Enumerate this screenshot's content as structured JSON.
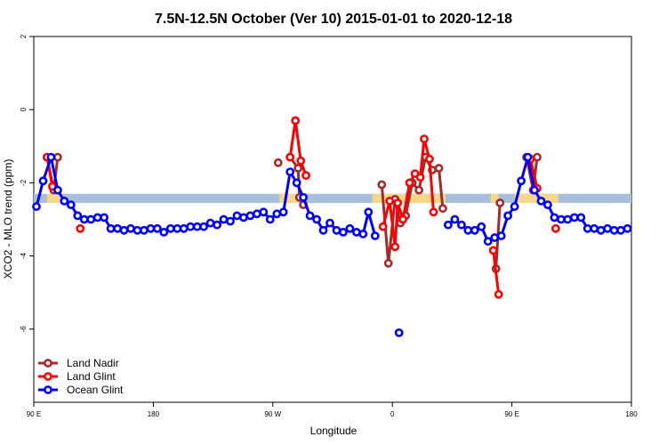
{
  "chart_data": {
    "type": "line",
    "title": "7.5N-12.5N October (Ver 10)   2015-01-01 to 2020-12-18",
    "xlabel": "Longitude",
    "ylabel": "XCO2 - MLO trend (ppm)",
    "x_ticks": [
      {
        "value": 0,
        "label": "90 E"
      },
      {
        "value": 90,
        "label": "180"
      },
      {
        "value": 180,
        "label": "90 W"
      },
      {
        "value": 270,
        "label": "0"
      },
      {
        "value": 360,
        "label": "90 E"
      },
      {
        "value": 450,
        "label": "180"
      }
    ],
    "y_ticks": [
      {
        "value": 2,
        "label": "2"
      },
      {
        "value": 0,
        "label": "0"
      },
      {
        "value": -2,
        "label": "-2"
      },
      {
        "value": -4,
        "label": "-4"
      },
      {
        "value": -6,
        "label": "-6"
      }
    ],
    "xlim": [
      0,
      450
    ],
    "ylim": [
      -8,
      2
    ],
    "band": {
      "y_low": -2.55,
      "y_high": -2.3,
      "color": "#a8bfdc",
      "highlight_color": "#f5d78a"
    },
    "band_highlights": [
      [
        10,
        22
      ],
      [
        185,
        200
      ],
      [
        255,
        310
      ],
      [
        344,
        350
      ],
      [
        362,
        395
      ]
    ],
    "legend": {
      "position": "bottom-left"
    },
    "series": [
      {
        "name": "Land Nadir",
        "color": "#a52a2a",
        "segments": [
          [
            [
              10,
              -1.3
            ],
            [
              15,
              -2.2
            ],
            [
              18,
              -1.3
            ]
          ],
          [
            [
              184,
              -1.45
            ]
          ],
          [
            [
              193,
              -1.3
            ],
            [
              199,
              -1.6
            ],
            [
              200,
              -2.4
            ],
            [
              203,
              -2.6
            ]
          ],
          [
            [
              262,
              -2.05
            ],
            [
              267,
              -4.2
            ],
            [
              272,
              -2.45
            ],
            [
              276,
              -3.1
            ],
            [
              280,
              -2.9
            ],
            [
              285,
              -2.0
            ],
            [
              290,
              -2.2
            ],
            [
              295,
              -1.3
            ],
            [
              300,
              -1.65
            ],
            [
              305,
              -1.6
            ],
            [
              308,
              -2.7
            ]
          ],
          [
            [
              348,
              -4.35
            ],
            [
              351,
              -2.55
            ]
          ],
          [
            [
              371,
              -1.3
            ],
            [
              376,
              -2.2
            ],
            [
              379,
              -1.3
            ]
          ]
        ]
      },
      {
        "name": "Land Glint",
        "color": "#ff0000",
        "segments": [
          [
            [
              10,
              -1.3
            ],
            [
              14,
              -2.1
            ]
          ],
          [
            [
              35,
              -3.25
            ]
          ],
          [
            [
              193,
              -1.3
            ],
            [
              197,
              -0.3
            ],
            [
              201,
              -1.4
            ],
            [
              205,
              -1.8
            ]
          ],
          [
            [
              263,
              -3.2
            ],
            [
              268,
              -2.5
            ],
            [
              272,
              -3.75
            ],
            [
              274,
              -2.55
            ],
            [
              278,
              -3.0
            ],
            [
              283,
              -2.0
            ],
            [
              287,
              -1.75
            ],
            [
              291,
              -1.85
            ],
            [
              294,
              -0.8
            ],
            [
              298,
              -1.35
            ],
            [
              301,
              -2.8
            ]
          ],
          [
            [
              346,
              -3.85
            ],
            [
              350,
              -5.05
            ]
          ],
          [
            [
              374,
              -1.35
            ],
            [
              379,
              -2.15
            ]
          ],
          [
            [
              393,
              -3.25
            ]
          ]
        ]
      },
      {
        "name": "Ocean Glint",
        "color": "#0000ff",
        "segments": [
          [
            [
              2,
              -2.65
            ],
            [
              7,
              -1.95
            ],
            [
              13,
              -1.3
            ],
            [
              18,
              -2.2
            ],
            [
              23,
              -2.5
            ],
            [
              28,
              -2.6
            ],
            [
              33,
              -2.9
            ],
            [
              38,
              -3.0
            ],
            [
              43,
              -3.0
            ],
            [
              48,
              -2.95
            ],
            [
              53,
              -2.95
            ],
            [
              58,
              -3.25
            ],
            [
              63,
              -3.25
            ],
            [
              68,
              -3.3
            ],
            [
              73,
              -3.25
            ],
            [
              78,
              -3.3
            ],
            [
              83,
              -3.3
            ],
            [
              88,
              -3.25
            ],
            [
              93,
              -3.25
            ],
            [
              98,
              -3.35
            ],
            [
              103,
              -3.25
            ],
            [
              108,
              -3.25
            ],
            [
              113,
              -3.25
            ],
            [
              118,
              -3.2
            ],
            [
              123,
              -3.2
            ],
            [
              128,
              -3.2
            ],
            [
              133,
              -3.1
            ],
            [
              138,
              -3.15
            ],
            [
              143,
              -3.0
            ],
            [
              148,
              -3.05
            ],
            [
              153,
              -2.9
            ],
            [
              158,
              -2.95
            ],
            [
              163,
              -2.9
            ],
            [
              168,
              -2.85
            ],
            [
              173,
              -2.8
            ],
            [
              178,
              -3.0
            ],
            [
              183,
              -2.85
            ],
            [
              188,
              -2.8
            ],
            [
              193,
              -1.7
            ],
            [
              198,
              -2.0
            ],
            [
              203,
              -2.4
            ],
            [
              208,
              -2.9
            ],
            [
              213,
              -3.0
            ],
            [
              218,
              -3.3
            ],
            [
              223,
              -3.1
            ],
            [
              228,
              -3.3
            ],
            [
              233,
              -3.35
            ],
            [
              238,
              -3.25
            ],
            [
              243,
              -3.35
            ],
            [
              248,
              -3.4
            ],
            [
              252,
              -2.8
            ],
            [
              257,
              -3.45
            ]
          ],
          [
            [
              275,
              -6.1
            ]
          ],
          [
            [
              312,
              -3.15
            ],
            [
              317,
              -3.0
            ],
            [
              322,
              -3.15
            ],
            [
              327,
              -3.3
            ],
            [
              332,
              -3.3
            ],
            [
              337,
              -3.2
            ],
            [
              342,
              -3.6
            ],
            [
              347,
              -3.5
            ],
            [
              352,
              -3.45
            ],
            [
              357,
              -2.9
            ],
            [
              362,
              -2.65
            ],
            [
              367,
              -1.95
            ],
            [
              372,
              -1.3
            ],
            [
              377,
              -2.2
            ],
            [
              382,
              -2.5
            ],
            [
              387,
              -2.6
            ],
            [
              392,
              -2.95
            ],
            [
              397,
              -3.0
            ],
            [
              402,
              -3.0
            ],
            [
              407,
              -2.95
            ],
            [
              412,
              -2.95
            ],
            [
              417,
              -3.25
            ],
            [
              422,
              -3.25
            ],
            [
              427,
              -3.3
            ],
            [
              432,
              -3.25
            ],
            [
              437,
              -3.3
            ],
            [
              442,
              -3.3
            ],
            [
              447,
              -3.25
            ]
          ]
        ]
      }
    ]
  }
}
